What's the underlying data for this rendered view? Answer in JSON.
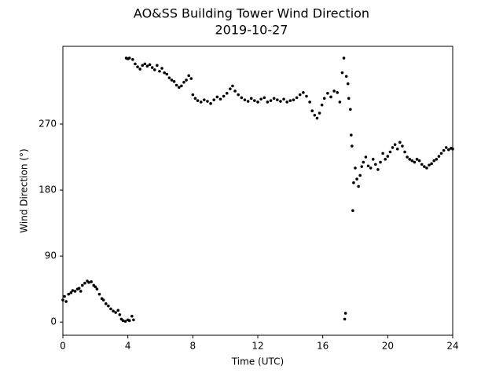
{
  "chart_data": {
    "type": "scatter",
    "title": "AO&SS Building Tower Wind Direction",
    "subtitle": "2019-10-27",
    "x_label": "Time (UTC)",
    "y_label": "Wind Direction (°)",
    "color": "#000000",
    "grid": false,
    "xlim": [
      0,
      24
    ],
    "xticks": [
      0,
      4,
      8,
      12,
      16,
      20,
      24
    ],
    "ylim": [
      -18,
      376
    ],
    "yticks": [
      0,
      90,
      180,
      270
    ],
    "x": [
      0,
      0.1,
      0.2,
      0.35,
      0.5,
      0.6,
      0.75,
      0.9,
      1.0,
      1.1,
      1.2,
      1.35,
      1.5,
      1.6,
      1.75,
      1.9,
      2.0,
      2.1,
      2.25,
      2.4,
      2.5,
      2.65,
      2.8,
      2.95,
      3.1,
      3.25,
      3.4,
      3.5,
      3.6,
      3.7,
      3.85,
      4.0,
      4.1,
      4.25,
      4.35,
      3.9,
      4.0,
      4.1,
      4.3,
      4.45,
      4.6,
      4.75,
      4.9,
      5.05,
      5.2,
      5.35,
      5.5,
      5.65,
      5.8,
      5.95,
      6.1,
      6.25,
      6.4,
      6.55,
      6.7,
      6.85,
      7.0,
      7.15,
      7.3,
      7.45,
      7.6,
      7.75,
      7.9,
      8.0,
      8.15,
      8.3,
      8.5,
      8.7,
      8.9,
      9.1,
      9.3,
      9.5,
      9.7,
      9.9,
      10.1,
      10.3,
      10.45,
      10.6,
      10.8,
      11.0,
      11.2,
      11.4,
      11.6,
      11.8,
      12.0,
      12.2,
      12.4,
      12.6,
      12.8,
      13.0,
      13.2,
      13.4,
      13.6,
      13.8,
      14.0,
      14.2,
      14.4,
      14.6,
      14.8,
      15.0,
      15.2,
      15.35,
      15.5,
      15.65,
      15.8,
      15.95,
      16.1,
      16.3,
      16.5,
      16.7,
      16.9,
      17.05,
      17.2,
      17.3,
      17.35,
      17.4,
      17.45,
      17.55,
      17.6,
      17.7,
      17.75,
      17.8,
      17.85,
      17.9,
      18.0,
      18.1,
      18.2,
      18.3,
      18.4,
      18.5,
      18.65,
      18.8,
      18.95,
      19.1,
      19.25,
      19.4,
      19.55,
      19.7,
      19.85,
      20.0,
      20.15,
      20.3,
      20.45,
      20.6,
      20.75,
      20.9,
      21.05,
      21.2,
      21.35,
      21.5,
      21.65,
      21.8,
      21.95,
      22.1,
      22.25,
      22.4,
      22.55,
      22.7,
      22.85,
      23.0,
      23.15,
      23.3,
      23.45,
      23.6,
      23.75,
      23.9,
      24.0
    ],
    "values": [
      30,
      35,
      28,
      38,
      40,
      43,
      42,
      45,
      46,
      42,
      50,
      53,
      56,
      54,
      55,
      50,
      48,
      45,
      38,
      32,
      30,
      25,
      22,
      18,
      15,
      13,
      16,
      10,
      4,
      2,
      1,
      3,
      2,
      8,
      3,
      360,
      359,
      360,
      358,
      352,
      348,
      345,
      350,
      352,
      349,
      351,
      347,
      344,
      350,
      342,
      346,
      340,
      338,
      333,
      330,
      328,
      323,
      320,
      322,
      327,
      330,
      336,
      332,
      310,
      305,
      302,
      300,
      303,
      301,
      298,
      303,
      307,
      304,
      308,
      312,
      318,
      322,
      315,
      310,
      306,
      303,
      301,
      305,
      302,
      300,
      304,
      306,
      300,
      302,
      305,
      303,
      301,
      304,
      300,
      302,
      303,
      306,
      310,
      313,
      308,
      300,
      288,
      282,
      278,
      285,
      296,
      305,
      312,
      307,
      315,
      313,
      300,
      340,
      360,
      4,
      12,
      335,
      325,
      305,
      290,
      255,
      240,
      152,
      190,
      210,
      195,
      185,
      200,
      212,
      218,
      225,
      213,
      210,
      222,
      215,
      208,
      218,
      230,
      222,
      226,
      232,
      238,
      242,
      236,
      245,
      240,
      232,
      225,
      222,
      220,
      218,
      222,
      220,
      215,
      212,
      210,
      214,
      216,
      220,
      222,
      226,
      230,
      234,
      238,
      235,
      237,
      236
    ]
  }
}
